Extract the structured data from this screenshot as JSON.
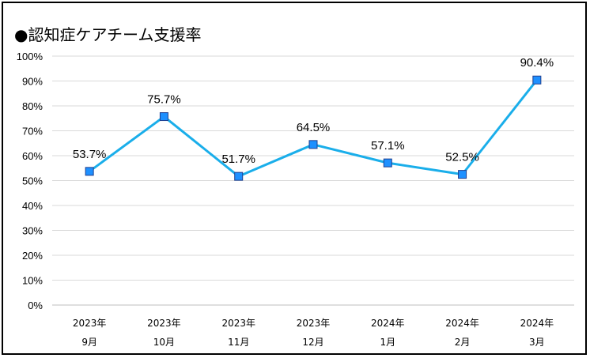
{
  "chart_data": {
    "type": "line",
    "title": "●認知症ケアチーム支援率",
    "categories": [
      [
        "2023年",
        "9月"
      ],
      [
        "2023年",
        "10月"
      ],
      [
        "2023年",
        "11月"
      ],
      [
        "2023年",
        "12月"
      ],
      [
        "2024年",
        "1月"
      ],
      [
        "2024年",
        "2月"
      ],
      [
        "2024年",
        "3月"
      ]
    ],
    "values": [
      53.7,
      75.7,
      51.7,
      64.5,
      57.1,
      52.5,
      90.4
    ],
    "data_labels": [
      "53.7%",
      "75.7%",
      "51.7%",
      "64.5%",
      "57.1%",
      "52.5%",
      "90.4%"
    ],
    "y_ticks": [
      "0%",
      "10%",
      "20%",
      "30%",
      "40%",
      "50%",
      "60%",
      "70%",
      "80%",
      "90%",
      "100%"
    ],
    "ylim": [
      0,
      100
    ],
    "grid": true,
    "legend": "none",
    "colors": {
      "line": "#1aaeea",
      "marker_fill": "#1e90ff",
      "marker_edge": "#1f3f8f",
      "grid": "#d9d9d9"
    }
  }
}
